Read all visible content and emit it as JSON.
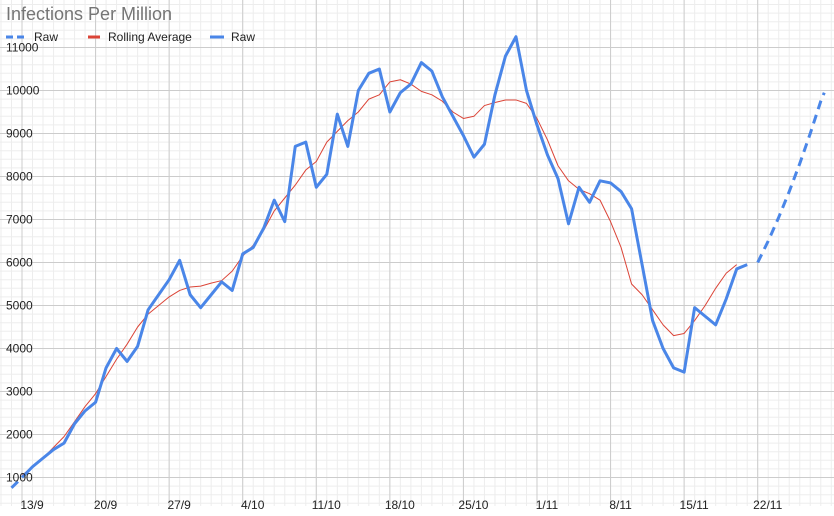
{
  "chart_data": {
    "type": "line",
    "title": "Infections Per Million",
    "xlabel": "",
    "ylabel": "",
    "grid": true,
    "legend_position": "top-left",
    "x_range": [
      "2020-09-12",
      "2020-11-30"
    ],
    "ylim": [
      600,
      11600
    ],
    "x_ticks": [
      {
        "date": "2020-09-13",
        "label": "13/9"
      },
      {
        "date": "2020-09-20",
        "label": "20/9"
      },
      {
        "date": "2020-09-27",
        "label": "27/9"
      },
      {
        "date": "2020-10-04",
        "label": "4/10"
      },
      {
        "date": "2020-10-11",
        "label": "11/10"
      },
      {
        "date": "2020-10-18",
        "label": "18/10"
      },
      {
        "date": "2020-10-25",
        "label": "25/10"
      },
      {
        "date": "2020-11-01",
        "label": "1/11"
      },
      {
        "date": "2020-11-08",
        "label": "8/11"
      },
      {
        "date": "2020-11-15",
        "label": "15/11"
      },
      {
        "date": "2020-11-22",
        "label": "22/11"
      }
    ],
    "y_ticks": [
      1000,
      2000,
      3000,
      4000,
      5000,
      6000,
      7000,
      8000,
      9000,
      10000,
      11000
    ],
    "series": [
      {
        "name": "Raw",
        "role": "projection",
        "color": "#4a86e8",
        "dashed": true,
        "points": [
          [
            "2020-09-12",
            760
          ],
          [
            "2020-09-13",
            1000
          ],
          [
            "2020-11-22",
            6000
          ],
          [
            "2020-11-23",
            6500
          ],
          [
            "2020-11-24",
            7050
          ],
          [
            "2020-11-25",
            7650
          ],
          [
            "2020-11-26",
            8300
          ],
          [
            "2020-11-27",
            9000
          ],
          [
            "2020-11-28",
            9750
          ],
          [
            "2020-11-28T08:00",
            9950
          ]
        ]
      },
      {
        "name": "Rolling Average",
        "role": "average",
        "color": "#db4437",
        "dashed": false,
        "points": [
          [
            "2020-09-13",
            1050
          ],
          [
            "2020-09-14",
            1250
          ],
          [
            "2020-09-15",
            1450
          ],
          [
            "2020-09-16",
            1700
          ],
          [
            "2020-09-17",
            1950
          ],
          [
            "2020-09-18",
            2300
          ],
          [
            "2020-09-19",
            2650
          ],
          [
            "2020-09-20",
            2950
          ],
          [
            "2020-09-21",
            3350
          ],
          [
            "2020-09-22",
            3750
          ],
          [
            "2020-09-23",
            4100
          ],
          [
            "2020-09-24",
            4500
          ],
          [
            "2020-09-25",
            4800
          ],
          [
            "2020-09-26",
            5000
          ],
          [
            "2020-09-27",
            5200
          ],
          [
            "2020-09-28",
            5350
          ],
          [
            "2020-09-29",
            5430
          ],
          [
            "2020-09-30",
            5450
          ],
          [
            "2020-10-01",
            5520
          ],
          [
            "2020-10-02",
            5580
          ],
          [
            "2020-10-03",
            5800
          ],
          [
            "2020-10-04",
            6150
          ],
          [
            "2020-10-05",
            6400
          ],
          [
            "2020-10-06",
            6750
          ],
          [
            "2020-10-07",
            7200
          ],
          [
            "2020-10-08",
            7500
          ],
          [
            "2020-10-09",
            7800
          ],
          [
            "2020-10-10",
            8150
          ],
          [
            "2020-10-11",
            8350
          ],
          [
            "2020-10-12",
            8800
          ],
          [
            "2020-10-13",
            9050
          ],
          [
            "2020-10-14",
            9300
          ],
          [
            "2020-10-15",
            9500
          ],
          [
            "2020-10-16",
            9800
          ],
          [
            "2020-10-17",
            9900
          ],
          [
            "2020-10-18",
            10200
          ],
          [
            "2020-10-19",
            10250
          ],
          [
            "2020-10-20",
            10150
          ],
          [
            "2020-10-21",
            9980
          ],
          [
            "2020-10-22",
            9900
          ],
          [
            "2020-10-23",
            9750
          ],
          [
            "2020-10-24",
            9500
          ],
          [
            "2020-10-25",
            9350
          ],
          [
            "2020-10-26",
            9400
          ],
          [
            "2020-10-27",
            9650
          ],
          [
            "2020-10-28",
            9720
          ],
          [
            "2020-10-29",
            9780
          ],
          [
            "2020-10-30",
            9780
          ],
          [
            "2020-10-31",
            9700
          ],
          [
            "2020-11-01",
            9350
          ],
          [
            "2020-11-02",
            8850
          ],
          [
            "2020-11-03",
            8250
          ],
          [
            "2020-11-04",
            7900
          ],
          [
            "2020-11-05",
            7700
          ],
          [
            "2020-11-06",
            7600
          ],
          [
            "2020-11-07",
            7450
          ],
          [
            "2020-11-08",
            6950
          ],
          [
            "2020-11-09",
            6350
          ],
          [
            "2020-11-10",
            5500
          ],
          [
            "2020-11-11",
            5250
          ],
          [
            "2020-11-12",
            4900
          ],
          [
            "2020-11-13",
            4550
          ],
          [
            "2020-11-14",
            4300
          ],
          [
            "2020-11-15",
            4350
          ],
          [
            "2020-11-16",
            4650
          ],
          [
            "2020-11-17",
            5000
          ],
          [
            "2020-11-18",
            5400
          ],
          [
            "2020-11-19",
            5750
          ],
          [
            "2020-11-20",
            5950
          ]
        ]
      },
      {
        "name": "Raw",
        "role": "raw",
        "color": "#4a86e8",
        "dashed": false,
        "points": [
          [
            "2020-09-13",
            1000
          ],
          [
            "2020-09-14",
            1250
          ],
          [
            "2020-09-15",
            1450
          ],
          [
            "2020-09-16",
            1650
          ],
          [
            "2020-09-17",
            1800
          ],
          [
            "2020-09-18",
            2250
          ],
          [
            "2020-09-19",
            2550
          ],
          [
            "2020-09-20",
            2750
          ],
          [
            "2020-09-21",
            3550
          ],
          [
            "2020-09-22",
            4000
          ],
          [
            "2020-09-23",
            3700
          ],
          [
            "2020-09-24",
            4050
          ],
          [
            "2020-09-25",
            4900
          ],
          [
            "2020-09-26",
            5250
          ],
          [
            "2020-09-27",
            5600
          ],
          [
            "2020-09-28",
            6050
          ],
          [
            "2020-09-29",
            5250
          ],
          [
            "2020-09-30",
            4950
          ],
          [
            "2020-10-01",
            5250
          ],
          [
            "2020-10-02",
            5550
          ],
          [
            "2020-10-03",
            5350
          ],
          [
            "2020-10-04",
            6200
          ],
          [
            "2020-10-05",
            6350
          ],
          [
            "2020-10-06",
            6800
          ],
          [
            "2020-10-07",
            7450
          ],
          [
            "2020-10-08",
            6950
          ],
          [
            "2020-10-09",
            8700
          ],
          [
            "2020-10-10",
            8800
          ],
          [
            "2020-10-11",
            7750
          ],
          [
            "2020-10-12",
            8050
          ],
          [
            "2020-10-13",
            9450
          ],
          [
            "2020-10-14",
            8700
          ],
          [
            "2020-10-15",
            10000
          ],
          [
            "2020-10-16",
            10400
          ],
          [
            "2020-10-17",
            10500
          ],
          [
            "2020-10-18",
            9500
          ],
          [
            "2020-10-19",
            9950
          ],
          [
            "2020-10-20",
            10150
          ],
          [
            "2020-10-21",
            10650
          ],
          [
            "2020-10-22",
            10450
          ],
          [
            "2020-10-23",
            9850
          ],
          [
            "2020-10-24",
            9400
          ],
          [
            "2020-10-25",
            8950
          ],
          [
            "2020-10-26",
            8450
          ],
          [
            "2020-10-27",
            8750
          ],
          [
            "2020-10-28",
            9900
          ],
          [
            "2020-10-29",
            10800
          ],
          [
            "2020-10-30",
            11250
          ],
          [
            "2020-10-31",
            10000
          ],
          [
            "2020-11-01",
            9200
          ],
          [
            "2020-11-02",
            8500
          ],
          [
            "2020-11-03",
            7950
          ],
          [
            "2020-11-04",
            6900
          ],
          [
            "2020-11-05",
            7750
          ],
          [
            "2020-11-06",
            7400
          ],
          [
            "2020-11-07",
            7900
          ],
          [
            "2020-11-08",
            7850
          ],
          [
            "2020-11-09",
            7650
          ],
          [
            "2020-11-10",
            7250
          ],
          [
            "2020-11-11",
            5950
          ],
          [
            "2020-11-12",
            4650
          ],
          [
            "2020-11-13",
            4000
          ],
          [
            "2020-11-14",
            3550
          ],
          [
            "2020-11-15",
            3450
          ],
          [
            "2020-11-16",
            4950
          ],
          [
            "2020-11-17",
            4750
          ],
          [
            "2020-11-18",
            4550
          ],
          [
            "2020-11-19",
            5150
          ],
          [
            "2020-11-20",
            5850
          ],
          [
            "2020-11-21",
            5950
          ]
        ]
      }
    ]
  }
}
